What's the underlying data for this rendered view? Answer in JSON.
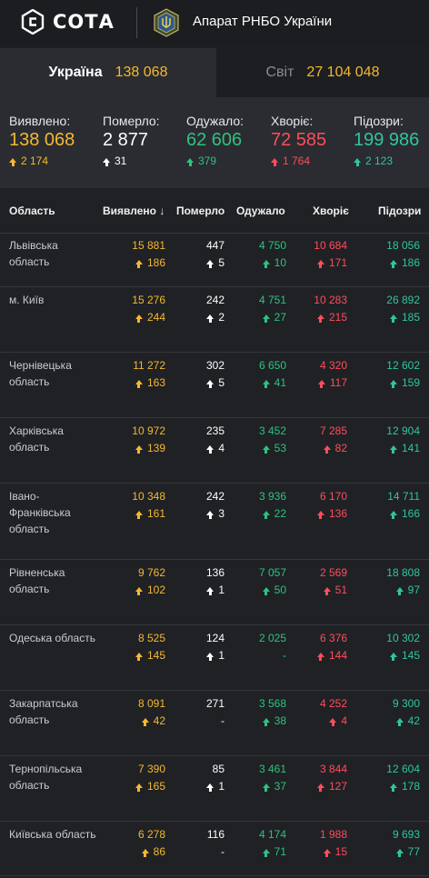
{
  "header": {
    "brand": "СОТА",
    "org": "Апарат РНБО України"
  },
  "tabs": [
    {
      "label": "Україна",
      "value": "138 068"
    },
    {
      "label": "Світ",
      "value": "27 104 048"
    }
  ],
  "summary": [
    {
      "label": "Виявлено:",
      "value": "138 068",
      "delta": "2 174",
      "color": "#f5b82e"
    },
    {
      "label": "Померло:",
      "value": "2 877",
      "delta": "31",
      "color": "#ffffff"
    },
    {
      "label": "Одужало:",
      "value": "62 606",
      "delta": "379",
      "color": "#2ec27e"
    },
    {
      "label": "Хворіє:",
      "value": "72 585",
      "delta": "1 764",
      "color": "#ff4d5a"
    },
    {
      "label": "Підозри:",
      "value": "199 986",
      "delta": "2 123",
      "color": "#31c4a1"
    }
  ],
  "table": {
    "headers": [
      "Область",
      "Виявлено",
      "Померло",
      "Одужало",
      "Хворіє",
      "Підозри"
    ],
    "sort_icon": "arrow-down-icon",
    "rows": [
      {
        "name": "Львівська область",
        "cases": "15 881",
        "cases_d": "186",
        "deaths": "447",
        "deaths_d": "5",
        "recovered": "4 750",
        "recovered_d": "10",
        "sick": "10 684",
        "sick_d": "171",
        "suspected": "18 056",
        "suspected_d": "186"
      },
      {
        "name": "м. Київ",
        "cases": "15 276",
        "cases_d": "244",
        "deaths": "242",
        "deaths_d": "2",
        "recovered": "4 751",
        "recovered_d": "27",
        "sick": "10 283",
        "sick_d": "215",
        "suspected": "26 892",
        "suspected_d": "185"
      },
      {
        "name": "Чернівецька область",
        "cases": "11 272",
        "cases_d": "163",
        "deaths": "302",
        "deaths_d": "5",
        "recovered": "6 650",
        "recovered_d": "41",
        "sick": "4 320",
        "sick_d": "117",
        "suspected": "12 602",
        "suspected_d": "159"
      },
      {
        "name": "Харківська область",
        "cases": "10 972",
        "cases_d": "139",
        "deaths": "235",
        "deaths_d": "4",
        "recovered": "3 452",
        "recovered_d": "53",
        "sick": "7 285",
        "sick_d": "82",
        "suspected": "12 904",
        "suspected_d": "141"
      },
      {
        "name": "Івано-Франківська область",
        "cases": "10 348",
        "cases_d": "161",
        "deaths": "242",
        "deaths_d": "3",
        "recovered": "3 936",
        "recovered_d": "22",
        "sick": "6 170",
        "sick_d": "136",
        "suspected": "14 711",
        "suspected_d": "166"
      },
      {
        "name": "Рівненська область",
        "cases": "9 762",
        "cases_d": "102",
        "deaths": "136",
        "deaths_d": "1",
        "recovered": "7 057",
        "recovered_d": "50",
        "sick": "2 569",
        "sick_d": "51",
        "suspected": "18 808",
        "suspected_d": "97"
      },
      {
        "name": "Одеська область",
        "cases": "8 525",
        "cases_d": "145",
        "deaths": "124",
        "deaths_d": "1",
        "recovered": "2 025",
        "recovered_d": "-",
        "sick": "6 376",
        "sick_d": "144",
        "suspected": "10 302",
        "suspected_d": "145"
      },
      {
        "name": "Закарпатська область",
        "cases": "8 091",
        "cases_d": "42",
        "deaths": "271",
        "deaths_d": "-",
        "recovered": "3 568",
        "recovered_d": "38",
        "sick": "4 252",
        "sick_d": "4",
        "suspected": "9 300",
        "suspected_d": "42"
      },
      {
        "name": "Тернопільська область",
        "cases": "7 390",
        "cases_d": "165",
        "deaths": "85",
        "deaths_d": "1",
        "recovered": "3 461",
        "recovered_d": "37",
        "sick": "3 844",
        "sick_d": "127",
        "suspected": "12 604",
        "suspected_d": "178"
      },
      {
        "name": "Київська область",
        "cases": "6 278",
        "cases_d": "86",
        "deaths": "116",
        "deaths_d": "-",
        "recovered": "4 174",
        "recovered_d": "71",
        "sick": "1 988",
        "sick_d": "15",
        "suspected": "9 693",
        "suspected_d": "77"
      }
    ]
  },
  "colors": {
    "cases": "#f5b82e",
    "deaths": "#ffffff",
    "recovered": "#2ec27e",
    "sick": "#ff4d5a",
    "suspected": "#31c4a1"
  }
}
